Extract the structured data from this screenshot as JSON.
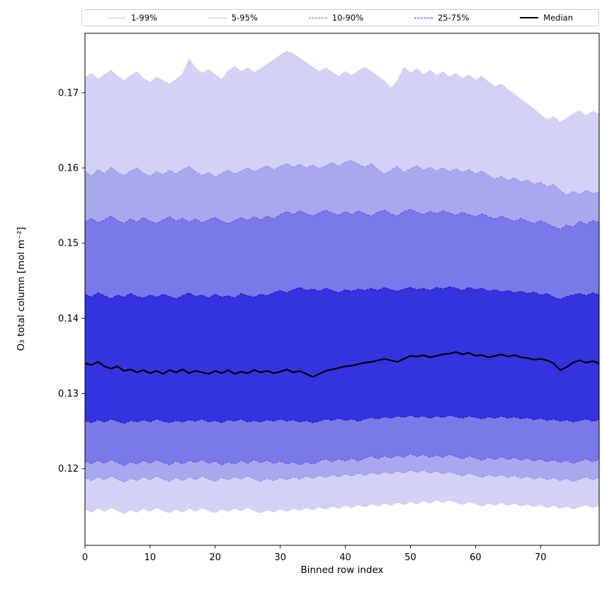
{
  "legend": {
    "items": [
      {
        "label": "1-99%",
        "color": "#c3c3f2",
        "style": "solid",
        "weight": 1.2
      },
      {
        "label": "5-95%",
        "color": "#9a9aeb",
        "style": "dashed",
        "weight": 1.2
      },
      {
        "label": "10-90%",
        "color": "#6060e0",
        "style": "dashed",
        "weight": 1.2
      },
      {
        "label": "25-75%",
        "color": "#2d2dc4",
        "style": "dashed",
        "weight": 1.2
      },
      {
        "label": "Median",
        "color": "#000000",
        "style": "solid",
        "weight": 2.5
      }
    ]
  },
  "chart_data": {
    "type": "area",
    "title": "",
    "xlabel": "Binned row index",
    "ylabel": "O₃ total column [mol m⁻²]",
    "xlim": [
      0,
      79
    ],
    "ylim": [
      0.1098,
      0.1779
    ],
    "grid": false,
    "legend_position": "top",
    "x_ticks": [
      0,
      10,
      20,
      30,
      40,
      50,
      60,
      70
    ],
    "x_tick_labels": [
      "0",
      "10",
      "20",
      "30",
      "40",
      "50",
      "60",
      "70"
    ],
    "y_ticks": [
      0.12,
      0.13,
      0.14,
      0.15,
      0.16,
      0.17
    ],
    "y_tick_labels": [
      "0.12",
      "0.13",
      "0.14",
      "0.15",
      "0.16",
      "0.17"
    ],
    "median_color": "#000000",
    "median_width": 2.2,
    "bands": [
      {
        "name": "1-99%",
        "lower": "p1",
        "upper": "p99",
        "fill": "#d2d2f6",
        "edge": "#bcbcf1",
        "dash": "1.5 2.4"
      },
      {
        "name": "5-95%",
        "lower": "p5",
        "upper": "p95",
        "fill": "#a8a8ef",
        "edge": "#9494e9",
        "dash": "4.5 2"
      },
      {
        "name": "10-90%",
        "lower": "p10",
        "upper": "p90",
        "fill": "#7979e9",
        "edge": "#5c5cdf",
        "dash": "4.5 2"
      },
      {
        "name": "25-75%",
        "lower": "p25",
        "upper": "p75",
        "fill": "#3333e0",
        "edge": "#1f1fb4",
        "dash": "4.5 2"
      }
    ],
    "x": [
      0,
      1,
      2,
      3,
      4,
      5,
      6,
      7,
      8,
      9,
      10,
      11,
      12,
      13,
      14,
      15,
      16,
      17,
      18,
      19,
      20,
      21,
      22,
      23,
      24,
      25,
      26,
      27,
      28,
      29,
      30,
      31,
      32,
      33,
      34,
      35,
      36,
      37,
      38,
      39,
      40,
      41,
      42,
      43,
      44,
      45,
      46,
      47,
      48,
      49,
      50,
      51,
      52,
      53,
      54,
      55,
      56,
      57,
      58,
      59,
      60,
      61,
      62,
      63,
      64,
      65,
      66,
      67,
      68,
      69,
      70,
      71,
      72,
      73,
      74,
      75,
      76,
      77,
      78,
      79
    ],
    "series": {
      "p1": [
        0.1146,
        0.1142,
        0.1147,
        0.1143,
        0.1148,
        0.1144,
        0.114,
        0.1145,
        0.1142,
        0.1147,
        0.1143,
        0.1148,
        0.1144,
        0.1141,
        0.1146,
        0.1142,
        0.1147,
        0.1143,
        0.1148,
        0.1144,
        0.1141,
        0.1146,
        0.1143,
        0.1147,
        0.1144,
        0.1148,
        0.1144,
        0.1141,
        0.1145,
        0.1142,
        0.1146,
        0.1143,
        0.1147,
        0.1144,
        0.1148,
        0.1145,
        0.1149,
        0.1146,
        0.115,
        0.1147,
        0.1151,
        0.1148,
        0.1152,
        0.1149,
        0.1153,
        0.115,
        0.1154,
        0.1151,
        0.1155,
        0.1152,
        0.1156,
        0.1153,
        0.1157,
        0.1154,
        0.1158,
        0.1155,
        0.1158,
        0.1155,
        0.1152,
        0.1156,
        0.1153,
        0.115,
        0.1154,
        0.1151,
        0.1155,
        0.1151,
        0.1154,
        0.115,
        0.1153,
        0.1149,
        0.1152,
        0.1148,
        0.1151,
        0.1147,
        0.115,
        0.1146,
        0.1149,
        0.1152,
        0.1148,
        0.1151
      ],
      "p5": [
        0.1188,
        0.1184,
        0.1189,
        0.1185,
        0.119,
        0.1186,
        0.1182,
        0.1187,
        0.1184,
        0.1189,
        0.1185,
        0.119,
        0.1186,
        0.1183,
        0.1188,
        0.1184,
        0.1189,
        0.1185,
        0.119,
        0.1186,
        0.1183,
        0.1188,
        0.1185,
        0.1189,
        0.1186,
        0.119,
        0.1186,
        0.1183,
        0.1187,
        0.1184,
        0.1188,
        0.1185,
        0.1189,
        0.1186,
        0.119,
        0.1187,
        0.1191,
        0.1188,
        0.1192,
        0.1189,
        0.1193,
        0.119,
        0.1194,
        0.1191,
        0.1195,
        0.1192,
        0.1196,
        0.1193,
        0.1197,
        0.1194,
        0.1198,
        0.1195,
        0.1198,
        0.1194,
        0.1197,
        0.1193,
        0.1196,
        0.1193,
        0.119,
        0.1194,
        0.1191,
        0.1188,
        0.1192,
        0.1189,
        0.1192,
        0.1188,
        0.1191,
        0.1187,
        0.119,
        0.1186,
        0.1189,
        0.1185,
        0.1188,
        0.1184,
        0.1187,
        0.1183,
        0.1186,
        0.1189,
        0.1185,
        0.1188
      ],
      "p10": [
        0.121,
        0.1206,
        0.1211,
        0.1207,
        0.1212,
        0.1208,
        0.1204,
        0.1209,
        0.1206,
        0.1211,
        0.1207,
        0.1212,
        0.1208,
        0.1205,
        0.121,
        0.1206,
        0.1211,
        0.1208,
        0.1212,
        0.1207,
        0.121,
        0.1205,
        0.1209,
        0.1206,
        0.1211,
        0.1207,
        0.1212,
        0.1208,
        0.1211,
        0.1207,
        0.121,
        0.1206,
        0.1209,
        0.1205,
        0.1209,
        0.1206,
        0.121,
        0.1213,
        0.1209,
        0.1213,
        0.121,
        0.1214,
        0.121,
        0.1214,
        0.1217,
        0.1213,
        0.1217,
        0.1214,
        0.1218,
        0.1215,
        0.122,
        0.1216,
        0.1219,
        0.1215,
        0.1218,
        0.1215,
        0.1219,
        0.1216,
        0.1213,
        0.1217,
        0.1214,
        0.1211,
        0.1215,
        0.1212,
        0.1216,
        0.1212,
        0.1215,
        0.1211,
        0.1214,
        0.121,
        0.1213,
        0.1209,
        0.1212,
        0.1208,
        0.1211,
        0.1207,
        0.121,
        0.1213,
        0.1209,
        0.1212
      ],
      "p25": [
        0.1264,
        0.1261,
        0.1265,
        0.1262,
        0.1266,
        0.1263,
        0.126,
        0.1264,
        0.1262,
        0.1265,
        0.1262,
        0.1266,
        0.1263,
        0.1261,
        0.1264,
        0.1262,
        0.1265,
        0.1263,
        0.1266,
        0.1262,
        0.1264,
        0.1261,
        0.1265,
        0.1263,
        0.1266,
        0.1262,
        0.1264,
        0.1262,
        0.1265,
        0.1263,
        0.1266,
        0.1263,
        0.1265,
        0.1262,
        0.1264,
        0.1261,
        0.1263,
        0.1266,
        0.1264,
        0.1267,
        0.1264,
        0.1266,
        0.1263,
        0.1266,
        0.1268,
        0.1266,
        0.1269,
        0.1267,
        0.127,
        0.1268,
        0.1271,
        0.1268,
        0.127,
        0.1267,
        0.127,
        0.1268,
        0.1271,
        0.1269,
        0.1267,
        0.127,
        0.1268,
        0.1266,
        0.1269,
        0.1267,
        0.127,
        0.1267,
        0.1269,
        0.1266,
        0.1268,
        0.1265,
        0.1267,
        0.1264,
        0.1266,
        0.1263,
        0.1265,
        0.1262,
        0.1264,
        0.1266,
        0.1263,
        0.1265
      ],
      "median": [
        0.134,
        0.1338,
        0.1342,
        0.1336,
        0.1333,
        0.1336,
        0.133,
        0.1332,
        0.1328,
        0.1331,
        0.1327,
        0.133,
        0.1326,
        0.1331,
        0.1328,
        0.1332,
        0.1327,
        0.133,
        0.1328,
        0.1326,
        0.133,
        0.1327,
        0.1331,
        0.1326,
        0.1329,
        0.1327,
        0.1331,
        0.1328,
        0.133,
        0.1327,
        0.1329,
        0.1332,
        0.1328,
        0.133,
        0.1326,
        0.1322,
        0.1326,
        0.133,
        0.1332,
        0.1334,
        0.1336,
        0.1337,
        0.1339,
        0.1341,
        0.1342,
        0.1344,
        0.1346,
        0.1344,
        0.1342,
        0.1346,
        0.135,
        0.1349,
        0.1351,
        0.1348,
        0.135,
        0.1352,
        0.1353,
        0.1355,
        0.1352,
        0.1354,
        0.135,
        0.1351,
        0.1348,
        0.135,
        0.1352,
        0.1349,
        0.1351,
        0.1348,
        0.1347,
        0.1345,
        0.1346,
        0.1344,
        0.134,
        0.1331,
        0.1335,
        0.1341,
        0.1344,
        0.1341,
        0.1343,
        0.134
      ],
      "p75": [
        0.1432,
        0.1428,
        0.1434,
        0.143,
        0.1426,
        0.1431,
        0.1428,
        0.1433,
        0.1429,
        0.1427,
        0.1431,
        0.1428,
        0.1432,
        0.1429,
        0.1426,
        0.143,
        0.1434,
        0.1429,
        0.1431,
        0.1427,
        0.1432,
        0.1428,
        0.143,
        0.1427,
        0.1433,
        0.143,
        0.1428,
        0.1432,
        0.143,
        0.1434,
        0.1437,
        0.1434,
        0.1438,
        0.1441,
        0.1437,
        0.1439,
        0.1436,
        0.144,
        0.1437,
        0.1434,
        0.1438,
        0.1436,
        0.1439,
        0.1437,
        0.144,
        0.1437,
        0.1441,
        0.1438,
        0.1436,
        0.1439,
        0.1441,
        0.1438,
        0.144,
        0.1437,
        0.1441,
        0.1439,
        0.1442,
        0.144,
        0.1437,
        0.1441,
        0.1438,
        0.144,
        0.1436,
        0.1438,
        0.1435,
        0.1437,
        0.1434,
        0.1436,
        0.1433,
        0.1435,
        0.1431,
        0.1433,
        0.1428,
        0.1425,
        0.1429,
        0.1431,
        0.1433,
        0.143,
        0.1434,
        0.1431
      ],
      "p90": [
        0.1528,
        0.1533,
        0.1527,
        0.1531,
        0.1536,
        0.153,
        0.1526,
        0.1532,
        0.1528,
        0.1534,
        0.1529,
        0.1526,
        0.1531,
        0.1535,
        0.1529,
        0.1533,
        0.1528,
        0.1532,
        0.1527,
        0.1531,
        0.1534,
        0.1529,
        0.1526,
        0.153,
        0.1534,
        0.153,
        0.1535,
        0.1531,
        0.1536,
        0.1532,
        0.1538,
        0.1542,
        0.1538,
        0.1543,
        0.1539,
        0.1536,
        0.154,
        0.1544,
        0.154,
        0.1537,
        0.1542,
        0.1538,
        0.1543,
        0.1539,
        0.1536,
        0.1541,
        0.1544,
        0.1539,
        0.1536,
        0.1542,
        0.1545,
        0.1541,
        0.1538,
        0.1542,
        0.1539,
        0.1543,
        0.154,
        0.1537,
        0.1541,
        0.1538,
        0.1535,
        0.1539,
        0.1535,
        0.1532,
        0.1536,
        0.1532,
        0.1529,
        0.1533,
        0.1529,
        0.1526,
        0.153,
        0.1526,
        0.1522,
        0.1518,
        0.1524,
        0.1521,
        0.1529,
        0.1525,
        0.153,
        0.1527
      ],
      "p95": [
        0.1596,
        0.1589,
        0.1598,
        0.1592,
        0.1601,
        0.1594,
        0.159,
        0.1596,
        0.16,
        0.1593,
        0.1589,
        0.1595,
        0.1591,
        0.1597,
        0.1592,
        0.1598,
        0.1602,
        0.1595,
        0.159,
        0.1594,
        0.1588,
        0.1593,
        0.1597,
        0.1592,
        0.1596,
        0.16,
        0.1595,
        0.1599,
        0.1603,
        0.1598,
        0.1602,
        0.1606,
        0.1601,
        0.1605,
        0.16,
        0.1604,
        0.1599,
        0.1603,
        0.1607,
        0.1602,
        0.1608,
        0.161,
        0.1605,
        0.1601,
        0.1606,
        0.1598,
        0.1592,
        0.1597,
        0.1602,
        0.1594,
        0.1599,
        0.1603,
        0.1597,
        0.1601,
        0.1596,
        0.16,
        0.1595,
        0.1599,
        0.1594,
        0.1598,
        0.1592,
        0.1596,
        0.159,
        0.1585,
        0.1589,
        0.1583,
        0.1587,
        0.1581,
        0.1584,
        0.1578,
        0.1581,
        0.1575,
        0.1578,
        0.157,
        0.1564,
        0.1569,
        0.1565,
        0.157,
        0.1566,
        0.1568
      ],
      "p99": [
        0.172,
        0.1726,
        0.1718,
        0.1724,
        0.173,
        0.1722,
        0.1716,
        0.1723,
        0.1728,
        0.1719,
        0.1714,
        0.1721,
        0.1716,
        0.1712,
        0.1718,
        0.1725,
        0.1745,
        0.1733,
        0.1726,
        0.1731,
        0.1724,
        0.1718,
        0.1729,
        0.1735,
        0.1728,
        0.1733,
        0.1727,
        0.1732,
        0.1738,
        0.1744,
        0.175,
        0.1755,
        0.1752,
        0.1746,
        0.174,
        0.1734,
        0.1728,
        0.1733,
        0.1727,
        0.1722,
        0.1728,
        0.1723,
        0.1729,
        0.1734,
        0.1728,
        0.1722,
        0.1716,
        0.1706,
        0.1716,
        0.1734,
        0.1726,
        0.1732,
        0.1724,
        0.173,
        0.1723,
        0.1728,
        0.1721,
        0.1726,
        0.1719,
        0.1724,
        0.1717,
        0.1722,
        0.1714,
        0.1708,
        0.1712,
        0.1704,
        0.1698,
        0.1691,
        0.1685,
        0.1678,
        0.1671,
        0.1664,
        0.1668,
        0.1661,
        0.1666,
        0.1672,
        0.1676,
        0.167,
        0.1675,
        0.1672
      ]
    }
  }
}
